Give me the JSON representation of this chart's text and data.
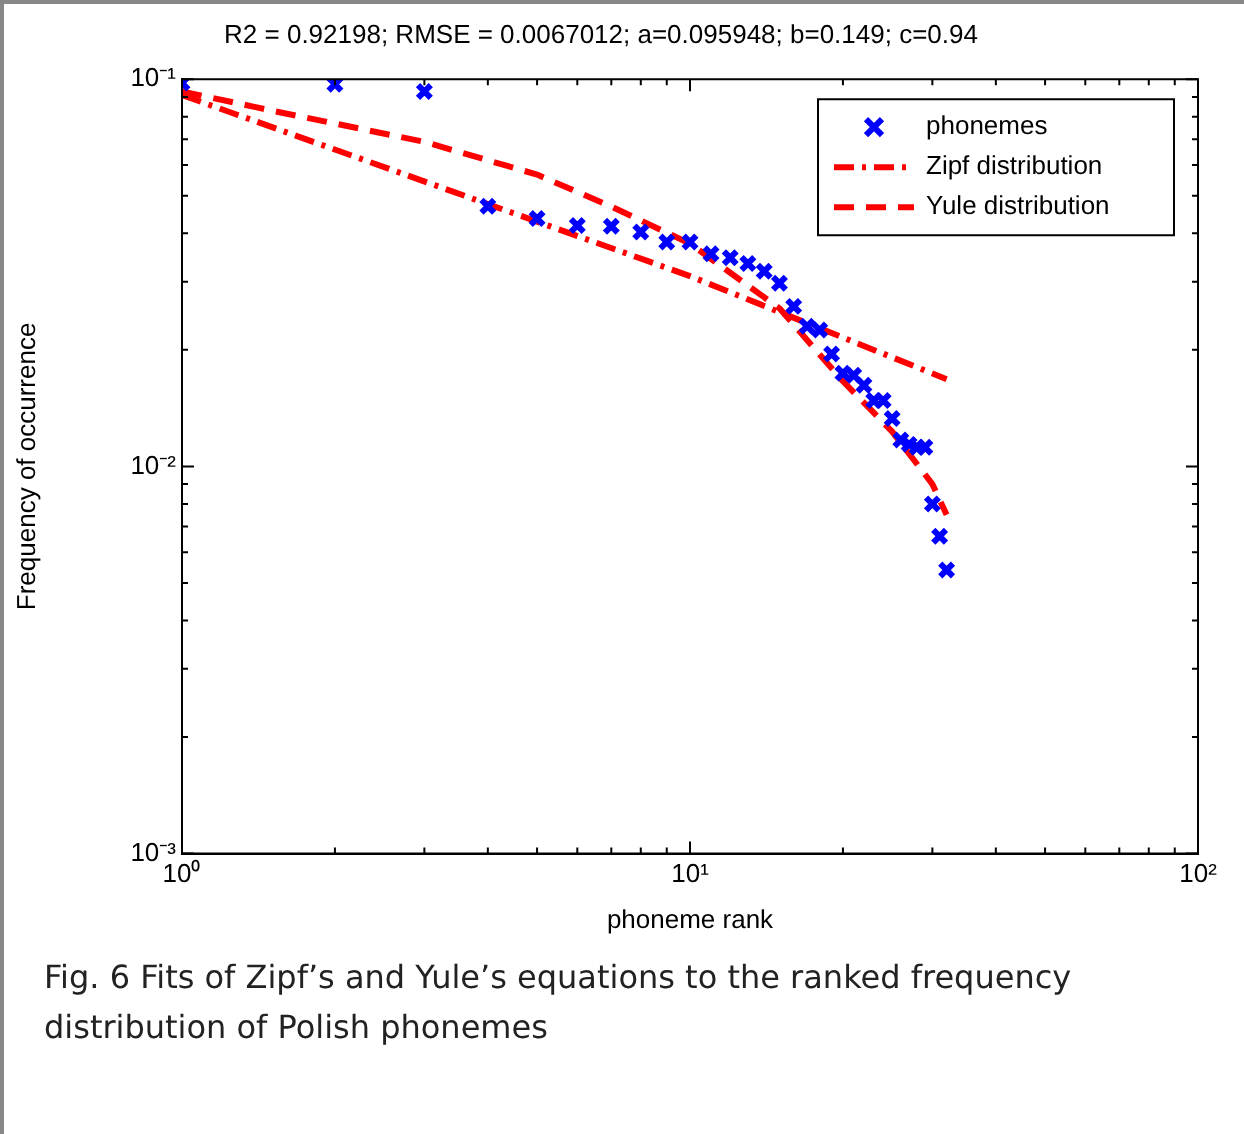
{
  "chart_data": {
    "type": "scatter",
    "title": "R2 = 0.92198; RMSE = 0.0067012; a=0.095948; b=0.149; c=0.94",
    "xlabel": "phoneme rank",
    "ylabel": "Frequency of occurrence",
    "annotations": [
      "Fig. 6 Fits of Zipf’s and Yule’s equations to the ranked frequency distribution of Polish phonemes"
    ],
    "log": "xy",
    "grid": false,
    "legend": "top right",
    "xlim": [
      1,
      100
    ],
    "ylim": [
      0.001,
      0.1
    ],
    "xticks": [
      {
        "value": 1,
        "label": "10⁰"
      },
      {
        "value": 2,
        "label": null
      },
      {
        "value": 3,
        "label": null
      },
      {
        "value": 4,
        "label": null
      },
      {
        "value": 5,
        "label": null
      },
      {
        "value": 6,
        "label": null
      },
      {
        "value": 7,
        "label": null
      },
      {
        "value": 8,
        "label": null
      },
      {
        "value": 9,
        "label": null
      },
      {
        "value": 10,
        "label": "10¹"
      },
      {
        "value": 20,
        "label": null
      },
      {
        "value": 30,
        "label": null
      },
      {
        "value": 40,
        "label": null
      },
      {
        "value": 50,
        "label": null
      },
      {
        "value": 60,
        "label": null
      },
      {
        "value": 70,
        "label": null
      },
      {
        "value": 80,
        "label": null
      },
      {
        "value": 90,
        "label": null
      },
      {
        "value": 100,
        "label": "10²"
      }
    ],
    "yticks": [
      {
        "value": 0.001,
        "label": "10⁻³"
      },
      {
        "value": 0.002,
        "label": null
      },
      {
        "value": 0.003,
        "label": null
      },
      {
        "value": 0.004,
        "label": null
      },
      {
        "value": 0.005,
        "label": null
      },
      {
        "value": 0.006,
        "label": null
      },
      {
        "value": 0.007,
        "label": null
      },
      {
        "value": 0.008,
        "label": null
      },
      {
        "value": 0.009,
        "label": null
      },
      {
        "value": 0.01,
        "label": "10⁻²"
      },
      {
        "value": 0.02,
        "label": null
      },
      {
        "value": 0.03,
        "label": null
      },
      {
        "value": 0.04,
        "label": null
      },
      {
        "value": 0.05,
        "label": null
      },
      {
        "value": 0.06,
        "label": null
      },
      {
        "value": 0.07,
        "label": null
      },
      {
        "value": 0.08,
        "label": null
      },
      {
        "value": 0.09,
        "label": null
      },
      {
        "value": 0.1,
        "label": "10⁻¹"
      }
    ],
    "series": [
      {
        "name": "phonemes",
        "type": "scatter",
        "color": "#0000ff",
        "marker": "cross",
        "x": [
          1,
          2,
          3,
          4,
          5,
          6,
          7,
          8,
          9,
          10,
          11,
          12,
          13,
          14,
          15,
          16,
          17,
          18,
          19,
          20,
          21,
          22,
          23,
          24,
          25,
          26,
          27,
          28,
          29,
          30,
          31,
          32
        ],
        "values": [
          0.0977,
          0.097,
          0.093,
          0.047,
          0.0437,
          0.0419,
          0.0417,
          0.0403,
          0.038,
          0.038,
          0.0354,
          0.0346,
          0.0334,
          0.0319,
          0.0297,
          0.0259,
          0.023,
          0.0225,
          0.0195,
          0.0174,
          0.0172,
          0.0162,
          0.0148,
          0.0148,
          0.0133,
          0.0117,
          0.0114,
          0.0112,
          0.0112,
          0.008,
          0.0066,
          0.0054
        ]
      },
      {
        "name": "Zipf distribution",
        "type": "line",
        "color": "#ff0000",
        "marker": "none",
        "line_style": "dashdot",
        "x": [
          1,
          10,
          32
        ],
        "values": [
          0.091,
          0.031,
          0.0168
        ]
      },
      {
        "name": "Yule distribution",
        "type": "line",
        "color": "#ff0000",
        "marker": "none",
        "line_style": "dashed",
        "x": [
          1,
          1.5,
          3,
          5,
          7,
          10,
          15,
          20,
          25,
          30,
          32
        ],
        "values": [
          0.093,
          0.083,
          0.0689,
          0.0567,
          0.0469,
          0.0376,
          0.0256,
          0.0166,
          0.0123,
          0.009,
          0.0075
        ]
      }
    ]
  }
}
